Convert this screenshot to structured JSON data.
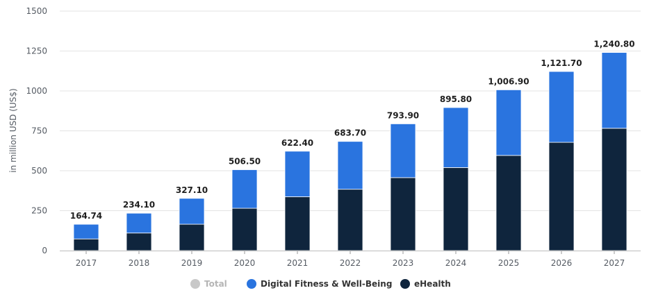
{
  "chart_data": {
    "type": "bar",
    "stacked": true,
    "categories": [
      "2017",
      "2018",
      "2019",
      "2020",
      "2021",
      "2022",
      "2023",
      "2024",
      "2025",
      "2026",
      "2027"
    ],
    "series": [
      {
        "name": "eHealth",
        "values": [
          73,
          110,
          165,
          265,
          337,
          384,
          457,
          520,
          596,
          678,
          766
        ],
        "color": "#0f253d"
      },
      {
        "name": "Digital Fitness & Well-Being",
        "values": [
          91.74,
          124.1,
          162.1,
          241.5,
          285.4,
          299.7,
          336.9,
          375.8,
          410.9,
          443.7,
          474.8
        ],
        "color": "#2a74df"
      }
    ],
    "totals": [
      164.74,
      234.1,
      327.1,
      506.5,
      622.4,
      683.7,
      793.9,
      895.8,
      1006.9,
      1121.7,
      1240.8
    ],
    "total_labels": [
      "164.74",
      "234.10",
      "327.10",
      "506.50",
      "622.40",
      "683.70",
      "793.90",
      "895.80",
      "1,006.90",
      "1,121.70",
      "1,240.80"
    ],
    "ylabel": "in million USD (US$)",
    "ylim": [
      0,
      1500
    ],
    "yticks": [
      0,
      250,
      500,
      750,
      1000,
      1250,
      1500
    ],
    "grid": true,
    "legend_position": "bottom-center",
    "legend": [
      {
        "name": "Total",
        "color": "#c8c8c8",
        "muted": true
      },
      {
        "name": "Digital Fitness & Well-Being",
        "color": "#2a74df",
        "muted": false
      },
      {
        "name": "eHealth",
        "color": "#0f253d",
        "muted": false
      }
    ]
  }
}
